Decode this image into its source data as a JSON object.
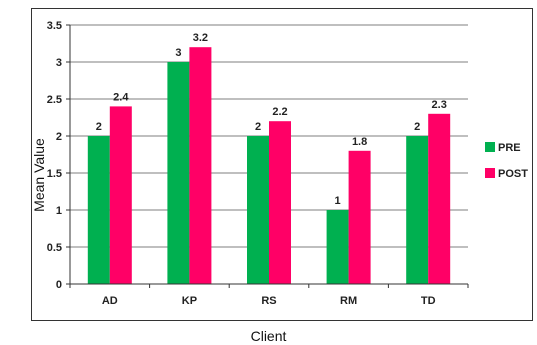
{
  "chart_data": {
    "type": "bar",
    "categories": [
      "AD",
      "KP",
      "RS",
      "RM",
      "TD"
    ],
    "series": [
      {
        "name": "PRE",
        "values": [
          2,
          3,
          2,
          1,
          2
        ],
        "color": "#00b050",
        "labels": [
          "2",
          "3",
          "2",
          "1",
          "2"
        ]
      },
      {
        "name": "POST",
        "values": [
          2.4,
          3.2,
          2.2,
          1.8,
          2.3
        ],
        "color": "#ff0066",
        "labels": [
          "2.4",
          "3.2",
          "2.2",
          "1.8",
          "2.3"
        ]
      }
    ],
    "title": "",
    "xlabel": "Client",
    "ylabel": "Mean Value",
    "ylim": [
      0,
      3.5
    ],
    "yticks": [
      "0",
      "0.5",
      "1",
      "1.5",
      "2",
      "2.5",
      "3",
      "3.5"
    ],
    "grid": true,
    "legend": "right"
  }
}
